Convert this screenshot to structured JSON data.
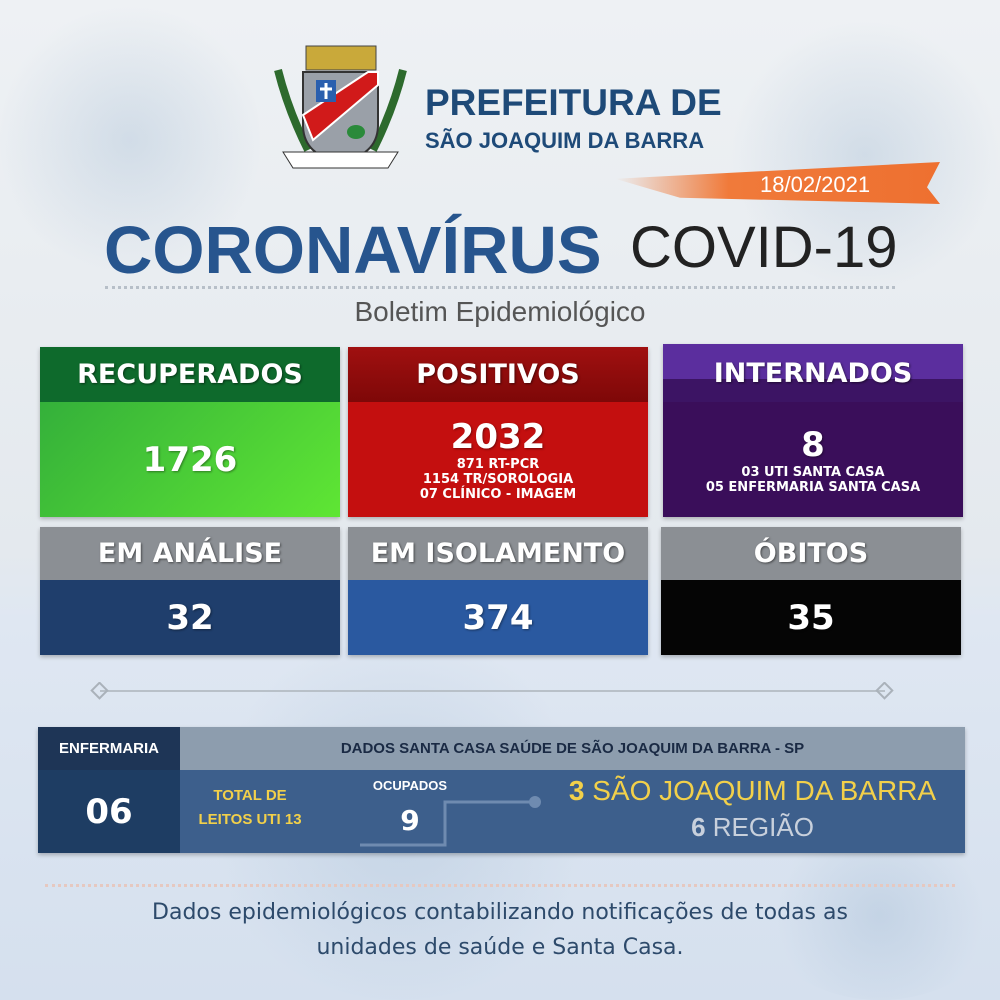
{
  "header": {
    "title_line1": "PREFEITURA DE",
    "title_line2": "SÃO JOAQUIM DA BARRA",
    "date": "18/02/2021",
    "crest_text": "SÃO JOAQUIM DA BARRA"
  },
  "headline": {
    "main": "CORONAVÍRUS",
    "secondary": "COVID-19",
    "subtitle": "Boletim Epidemiológico"
  },
  "cards": [
    {
      "label": "RECUPERADOS",
      "value": "1726",
      "details": []
    },
    {
      "label": "POSITIVOS",
      "value": "2032",
      "details": [
        "871 RT-PCR",
        "1154 TR/SOROLOGIA",
        "07 CLÍNICO - IMAGEM"
      ]
    },
    {
      "label": "INTERNADOS",
      "value": "8",
      "details": [
        "03 UTI SANTA CASA",
        "05 ENFERMARIA SANTA CASA"
      ]
    },
    {
      "label": "EM ANÁLISE",
      "value": "32"
    },
    {
      "label": "EM ISOLAMENTO",
      "value": "374"
    },
    {
      "label": "ÓBITOS",
      "value": "35"
    }
  ],
  "santa_casa": {
    "left_header": "ENFERMARIA",
    "left_value": "06",
    "title": "DADOS SANTA CASA SAÚDE DE SÃO JOAQUIM DA BARRA - SP",
    "total_line1": "TOTAL DE",
    "total_line2": "LEITOS UTI 13",
    "occupied_label": "OCUPADOS",
    "occupied_value": "9",
    "city_count": "3",
    "city_label": "SÃO JOAQUIM DA BARRA",
    "region_count": "6",
    "region_label": "REGIÃO"
  },
  "footer": {
    "line1": "Dados epidemiológicos contabilizando notificações de todas as",
    "line2": "unidades de saúde e Santa Casa."
  },
  "colors": {
    "brand_blue": "#27558e",
    "green": "#3cc23a",
    "red": "#c40f0f",
    "purple": "#3a0e5a",
    "orange": "#f07a3a",
    "yellow": "#f2d04a"
  }
}
